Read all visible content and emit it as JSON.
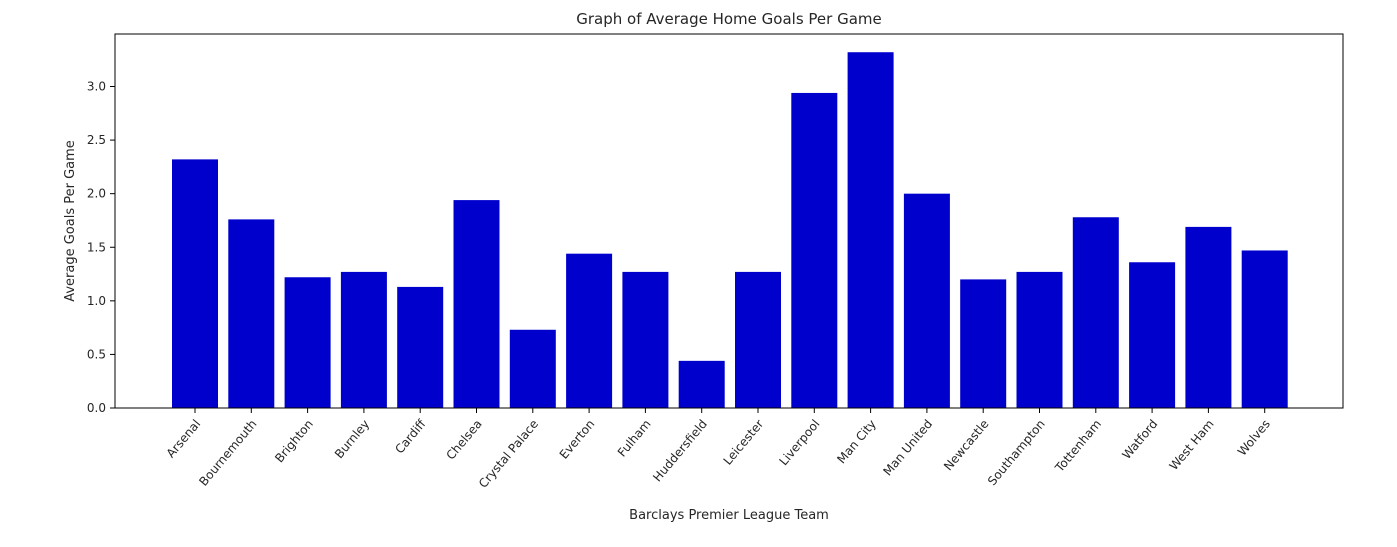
{
  "chart_data": {
    "type": "bar",
    "title": "Graph of Average Home Goals Per Game",
    "xlabel": "Barclays Premier League Team",
    "ylabel": "Average Goals Per Game",
    "ylim": [
      0,
      3.49
    ],
    "yticks": [
      "0.0",
      "0.5",
      "1.0",
      "1.5",
      "2.0",
      "2.5",
      "3.0"
    ],
    "grid": false,
    "legend": "none",
    "bar_color": "#0000cd",
    "categories": [
      "Arsenal",
      "Bournemouth",
      "Brighton",
      "Burnley",
      "Cardiff",
      "Chelsea",
      "Crystal Palace",
      "Everton",
      "Fulham",
      "Huddersfield",
      "Leicester",
      "Liverpool",
      "Man City",
      "Man United",
      "Newcastle",
      "Southampton",
      "Tottenham",
      "Watford",
      "West Ham",
      "Wolves"
    ],
    "values": [
      2.32,
      1.76,
      1.22,
      1.27,
      1.13,
      1.94,
      0.73,
      1.44,
      1.27,
      0.44,
      1.27,
      2.94,
      3.32,
      2.0,
      1.2,
      1.27,
      1.78,
      1.36,
      1.69,
      1.47
    ]
  }
}
